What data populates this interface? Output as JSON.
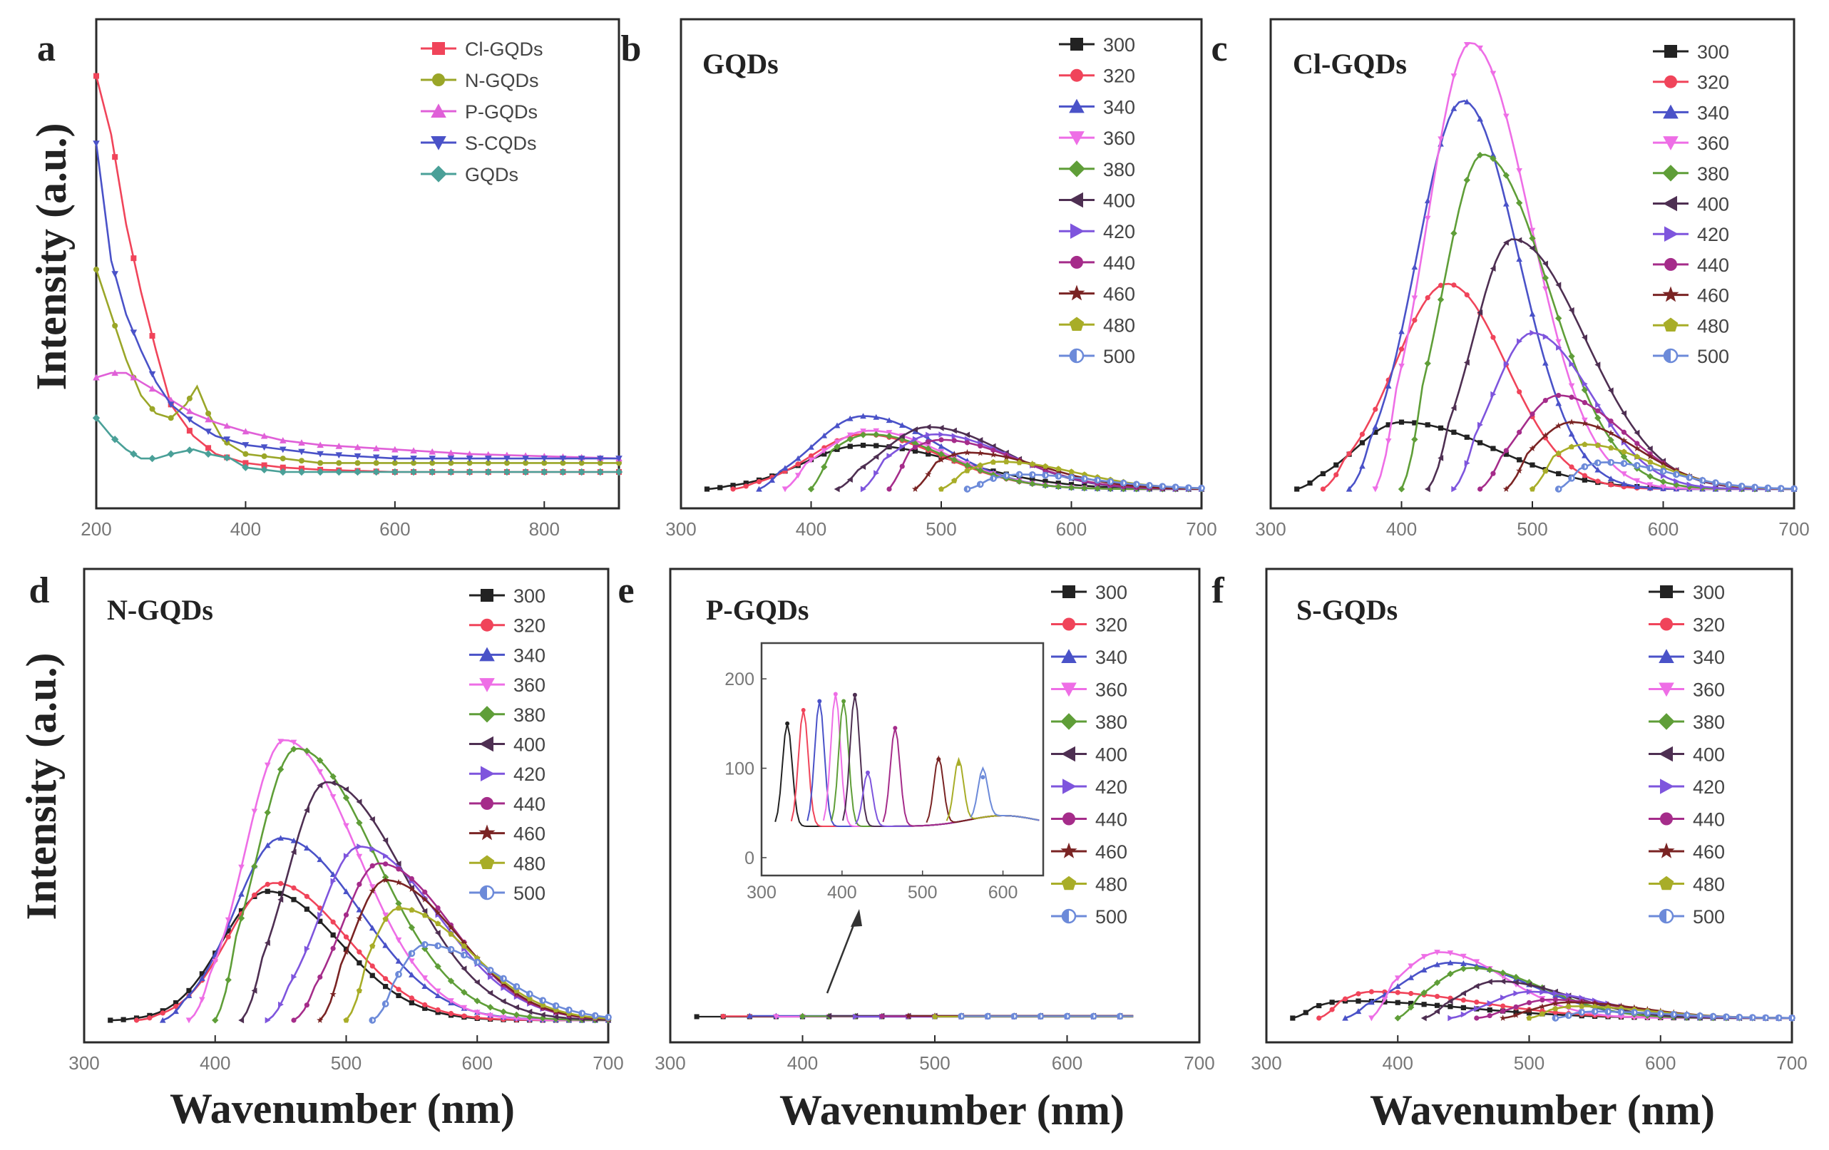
{
  "figure": {
    "ylabel": "Intensity (a.u.)",
    "xlabel": "Wavenumber (nm)"
  },
  "series_colors": {
    "300": "#222222",
    "320": "#f0445a",
    "340": "#4a52c8",
    "360": "#ee6ee6",
    "380": "#5f9e38",
    "400": "#4e2f52",
    "420": "#7e55dd",
    "440": "#a52c8a",
    "460": "#7a2424",
    "480": "#a8ad28",
    "500": "#6c8ad9"
  },
  "chart_data": [
    {
      "panel": "a",
      "type": "line",
      "title": "",
      "xlabel": "",
      "ylabel": "Intensity (a.u.)",
      "xlim": [
        200,
        900
      ],
      "ylim": [
        0,
        100
      ],
      "xticks": [
        "200",
        "400",
        "600",
        "800"
      ],
      "legend": "top-right",
      "series": [
        {
          "name": "Cl-GQDs",
          "color": "#f0445a",
          "marker": "square",
          "x": [
            200,
            220,
            240,
            260,
            280,
            300,
            330,
            360,
            400,
            450,
            500,
            600,
            700,
            800,
            900
          ],
          "values": [
            93,
            80,
            60,
            45,
            32,
            20,
            13,
            9,
            7,
            6,
            5.5,
            5,
            5,
            5,
            5
          ]
        },
        {
          "name": "N-GQDs",
          "color": "#9aa628",
          "marker": "circle",
          "x": [
            200,
            220,
            240,
            260,
            280,
            300,
            320,
            335,
            350,
            370,
            400,
            450,
            500,
            600,
            700,
            800,
            900
          ],
          "values": [
            50,
            40,
            30,
            22,
            18,
            17,
            20,
            24,
            18,
            12,
            9,
            8,
            7,
            7,
            7,
            7,
            7
          ]
        },
        {
          "name": "P-GQDs",
          "color": "#e060d8",
          "marker": "tri-up",
          "x": [
            200,
            220,
            240,
            260,
            280,
            300,
            330,
            360,
            400,
            450,
            500,
            600,
            700,
            800,
            900
          ],
          "values": [
            26,
            27,
            27,
            25,
            23,
            21,
            18,
            16,
            14,
            12,
            11,
            10,
            9,
            8.5,
            8
          ]
        },
        {
          "name": "S-CQDs",
          "color": "#4a52c8",
          "marker": "tri-down",
          "x": [
            200,
            210,
            220,
            240,
            260,
            280,
            300,
            330,
            360,
            400,
            450,
            500,
            600,
            700,
            800,
            900
          ],
          "values": [
            78,
            65,
            52,
            40,
            32,
            25,
            20,
            16,
            13,
            11,
            10,
            9,
            8,
            8,
            8,
            8
          ]
        },
        {
          "name": "GQDs",
          "color": "#4aa098",
          "marker": "diamond",
          "x": [
            200,
            220,
            240,
            260,
            280,
            300,
            330,
            350,
            380,
            400,
            450,
            500,
            600,
            700,
            800,
            900
          ],
          "values": [
            17,
            13,
            10,
            8,
            8,
            9,
            10,
            9,
            8,
            6,
            5,
            5,
            5,
            5,
            5,
            5
          ]
        }
      ]
    },
    {
      "panel": "b",
      "type": "line",
      "title": "GQDs",
      "xlim": [
        300,
        700
      ],
      "ylim": [
        0,
        100
      ],
      "xticks": [
        "300",
        "400",
        "500",
        "600",
        "700"
      ],
      "legend": "top-right",
      "series": [
        {
          "name": "300",
          "marker": "square",
          "peak": 440,
          "height": 24,
          "start": 320,
          "sigL": 45,
          "sigR": 75
        },
        {
          "name": "320",
          "marker": "circle",
          "peak": 440,
          "height": 30,
          "start": 340,
          "sigL": 40,
          "sigR": 60
        },
        {
          "name": "340",
          "marker": "tri-up",
          "peak": 440,
          "height": 40,
          "start": 360,
          "sigL": 38,
          "sigR": 58
        },
        {
          "name": "360",
          "marker": "tri-down",
          "peak": 445,
          "height": 32,
          "start": 380,
          "sigL": 38,
          "sigR": 58
        },
        {
          "name": "380",
          "marker": "diamond",
          "peak": 445,
          "height": 30,
          "start": 400,
          "sigL": 35,
          "sigR": 58
        },
        {
          "name": "400",
          "marker": "tri-left",
          "peak": 490,
          "height": 34,
          "start": 420,
          "sigL": 35,
          "sigR": 58
        },
        {
          "name": "420",
          "marker": "tri-right",
          "peak": 495,
          "height": 30,
          "start": 440,
          "sigL": 35,
          "sigR": 58
        },
        {
          "name": "440",
          "marker": "circle",
          "peak": 500,
          "height": 27,
          "start": 460,
          "sigL": 35,
          "sigR": 58
        },
        {
          "name": "460",
          "marker": "star",
          "peak": 520,
          "height": 20,
          "start": 480,
          "sigL": 30,
          "sigR": 58
        },
        {
          "name": "480",
          "marker": "pentagon",
          "peak": 545,
          "height": 15,
          "start": 500,
          "sigL": 28,
          "sigR": 58
        },
        {
          "name": "500",
          "marker": "half",
          "peak": 560,
          "height": 8,
          "start": 520,
          "sigL": 25,
          "sigR": 60
        }
      ]
    },
    {
      "panel": "c",
      "type": "line",
      "title": "Cl-GQDs",
      "xlim": [
        300,
        700
      ],
      "ylim": [
        0,
        100
      ],
      "xticks": [
        "300",
        "400",
        "500",
        "600",
        "700"
      ],
      "legend": "top-right",
      "series": [
        {
          "name": "300",
          "marker": "square",
          "peak": 400,
          "height": 15,
          "start": 320,
          "sigL": 35,
          "sigR": 70
        },
        {
          "name": "320",
          "marker": "circle",
          "peak": 435,
          "height": 46,
          "start": 340,
          "sigL": 40,
          "sigR": 45
        },
        {
          "name": "340",
          "marker": "tri-up",
          "peak": 447,
          "height": 87,
          "start": 360,
          "sigL": 35,
          "sigR": 42
        },
        {
          "name": "360",
          "marker": "tri-down",
          "peak": 453,
          "height": 100,
          "start": 380,
          "sigL": 33,
          "sigR": 45
        },
        {
          "name": "380",
          "marker": "diamond",
          "peak": 462,
          "height": 75,
          "start": 400,
          "sigL": 30,
          "sigR": 50
        },
        {
          "name": "400",
          "marker": "tri-left",
          "peak": 485,
          "height": 56,
          "start": 420,
          "sigL": 30,
          "sigR": 55
        },
        {
          "name": "420",
          "marker": "tri-right",
          "peak": 500,
          "height": 35,
          "start": 440,
          "sigL": 30,
          "sigR": 45
        },
        {
          "name": "440",
          "marker": "circle",
          "peak": 520,
          "height": 21,
          "start": 460,
          "sigL": 30,
          "sigR": 50
        },
        {
          "name": "460",
          "marker": "star",
          "peak": 530,
          "height": 15,
          "start": 480,
          "sigL": 30,
          "sigR": 50
        },
        {
          "name": "480",
          "marker": "pentagon",
          "peak": 540,
          "height": 10,
          "start": 500,
          "sigL": 30,
          "sigR": 50
        },
        {
          "name": "500",
          "marker": "half",
          "peak": 555,
          "height": 6,
          "start": 520,
          "sigL": 25,
          "sigR": 50
        }
      ]
    },
    {
      "panel": "d",
      "type": "line",
      "title": "N-GQDs",
      "xlim": [
        300,
        700
      ],
      "ylim": [
        0,
        100
      ],
      "xticks": [
        "300",
        "400",
        "500",
        "600",
        "700"
      ],
      "legend": "top-right",
      "series": [
        {
          "name": "300",
          "marker": "square",
          "peak": 440,
          "height": 46,
          "start": 320,
          "sigL": 35,
          "sigR": 55
        },
        {
          "name": "320",
          "marker": "circle",
          "peak": 445,
          "height": 49,
          "start": 340,
          "sigL": 35,
          "sigR": 55
        },
        {
          "name": "340",
          "marker": "tri-up",
          "peak": 450,
          "height": 65,
          "start": 360,
          "sigL": 35,
          "sigR": 60
        },
        {
          "name": "360",
          "marker": "tri-down",
          "peak": 453,
          "height": 100,
          "start": 380,
          "sigL": 30,
          "sigR": 55
        },
        {
          "name": "380",
          "marker": "diamond",
          "peak": 462,
          "height": 97,
          "start": 400,
          "sigL": 30,
          "sigR": 60
        },
        {
          "name": "400",
          "marker": "tri-left",
          "peak": 485,
          "height": 85,
          "start": 420,
          "sigL": 30,
          "sigR": 60
        },
        {
          "name": "420",
          "marker": "tri-right",
          "peak": 510,
          "height": 62,
          "start": 440,
          "sigL": 30,
          "sigR": 60
        },
        {
          "name": "440",
          "marker": "circle",
          "peak": 525,
          "height": 56,
          "start": 460,
          "sigL": 28,
          "sigR": 55
        },
        {
          "name": "460",
          "marker": "star",
          "peak": 530,
          "height": 50,
          "start": 480,
          "sigL": 25,
          "sigR": 55
        },
        {
          "name": "480",
          "marker": "pentagon",
          "peak": 540,
          "height": 40,
          "start": 500,
          "sigL": 22,
          "sigR": 55
        },
        {
          "name": "500",
          "marker": "half",
          "peak": 560,
          "height": 27,
          "start": 520,
          "sigL": 20,
          "sigR": 55
        }
      ]
    },
    {
      "panel": "e",
      "type": "line",
      "title": "P-GQDs",
      "xlim": [
        300,
        700
      ],
      "ylim": [
        0,
        100
      ],
      "xticks": [
        "300",
        "400",
        "500",
        "600",
        "700"
      ],
      "legend": "top-right",
      "series_x": [
        320,
        340,
        360,
        380,
        400,
        420,
        440,
        460,
        480,
        500,
        520,
        540,
        560,
        580,
        600,
        620,
        640
      ],
      "series_level": 1,
      "inset": {
        "xlim": [
          300,
          650
        ],
        "ylim": [
          -20,
          240
        ],
        "xticks": [
          "300",
          "400",
          "500",
          "600"
        ],
        "yticks": [
          "0",
          "100",
          "200"
        ],
        "peaks": [
          {
            "name": "300",
            "x": 332,
            "h": 115
          },
          {
            "name": "320",
            "x": 352,
            "h": 130
          },
          {
            "name": "340",
            "x": 372,
            "h": 140
          },
          {
            "name": "360",
            "x": 392,
            "h": 148
          },
          {
            "name": "380",
            "x": 402,
            "h": 140
          },
          {
            "name": "400",
            "x": 416,
            "h": 147
          },
          {
            "name": "420",
            "x": 432,
            "h": 60
          },
          {
            "name": "440",
            "x": 466,
            "h": 110
          },
          {
            "name": "460",
            "x": 520,
            "h": 75
          },
          {
            "name": "480",
            "x": 545,
            "h": 70
          },
          {
            "name": "500",
            "x": 575,
            "h": 55
          }
        ]
      }
    },
    {
      "panel": "f",
      "type": "line",
      "title": "S-GQDs",
      "xlim": [
        300,
        700
      ],
      "ylim": [
        0,
        100
      ],
      "xticks": [
        "300",
        "400",
        "500",
        "600",
        "700"
      ],
      "legend": "top-right",
      "series": [
        {
          "name": "300",
          "marker": "square",
          "peak": 360,
          "height": 13,
          "start": 320,
          "sigL": 25,
          "sigR": 90
        },
        {
          "name": "320",
          "marker": "circle",
          "peak": 380,
          "height": 20,
          "start": 340,
          "sigL": 25,
          "sigR": 80
        },
        {
          "name": "340",
          "marker": "tri-up",
          "peak": 440,
          "height": 42,
          "start": 360,
          "sigL": 38,
          "sigR": 60
        },
        {
          "name": "360",
          "marker": "tri-down",
          "peak": 432,
          "height": 50,
          "start": 380,
          "sigL": 32,
          "sigR": 50
        },
        {
          "name": "380",
          "marker": "diamond",
          "peak": 455,
          "height": 38,
          "start": 400,
          "sigL": 30,
          "sigR": 55
        },
        {
          "name": "400",
          "marker": "tri-left",
          "peak": 475,
          "height": 28,
          "start": 420,
          "sigL": 28,
          "sigR": 55
        },
        {
          "name": "420",
          "marker": "tri-right",
          "peak": 500,
          "height": 20,
          "start": 440,
          "sigL": 28,
          "sigR": 55
        },
        {
          "name": "440",
          "marker": "circle",
          "peak": 515,
          "height": 14,
          "start": 460,
          "sigL": 25,
          "sigR": 55
        },
        {
          "name": "460",
          "marker": "star",
          "peak": 530,
          "height": 12,
          "start": 480,
          "sigL": 25,
          "sigR": 55
        },
        {
          "name": "480",
          "marker": "pentagon",
          "peak": 535,
          "height": 9,
          "start": 500,
          "sigL": 22,
          "sigR": 55
        },
        {
          "name": "500",
          "marker": "half",
          "peak": 550,
          "height": 5,
          "start": 520,
          "sigL": 20,
          "sigR": 55
        }
      ]
    }
  ]
}
